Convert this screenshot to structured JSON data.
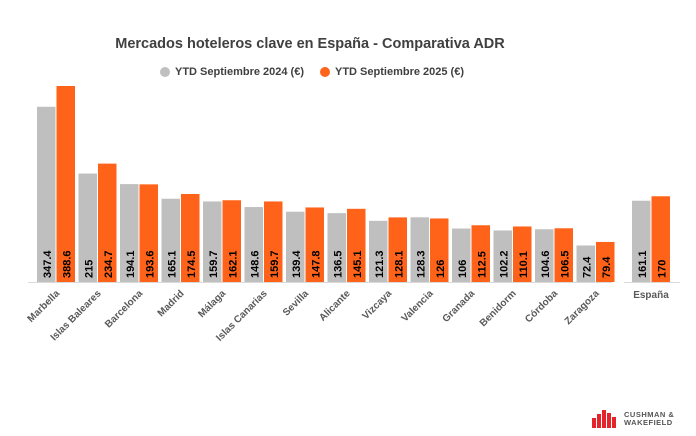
{
  "chart_data": {
    "type": "bar",
    "title": "Mercados hoteleros clave en España - Comparativa ADR",
    "categories": [
      "Marbella",
      "Islas Baleares",
      "Barcelona",
      "Madrid",
      "Málaga",
      "Islas Canarias",
      "Sevilla",
      "Alicante",
      "Vizcaya",
      "Valencia",
      "Granada",
      "Benidorm",
      "Córdoba",
      "Zaragoza",
      "España"
    ],
    "series": [
      {
        "name": "YTD Septiembre 2024 (€)",
        "color": "#bfbfbf",
        "values": [
          347.4,
          215,
          194.1,
          165.1,
          159.7,
          148.6,
          139.4,
          136.5,
          121.3,
          128.3,
          106,
          102.2,
          104.6,
          72.4,
          161.1
        ]
      },
      {
        "name": "YTD Septiembre 2025 (€)",
        "color": "#ff6319",
        "values": [
          388.6,
          234.7,
          193.6,
          174.5,
          162.1,
          159.7,
          147.8,
          145.1,
          128.1,
          126,
          112.5,
          110.1,
          106.5,
          79.4,
          170
        ]
      }
    ],
    "xlabel": "",
    "ylabel": "",
    "ylim": [
      0,
      400
    ],
    "grid": false,
    "legend": "top"
  },
  "logo": {
    "text": "CUSHMAN & WAKEFIELD",
    "line1": "CUSHMAN &",
    "line2": "WAKEFIELD"
  }
}
